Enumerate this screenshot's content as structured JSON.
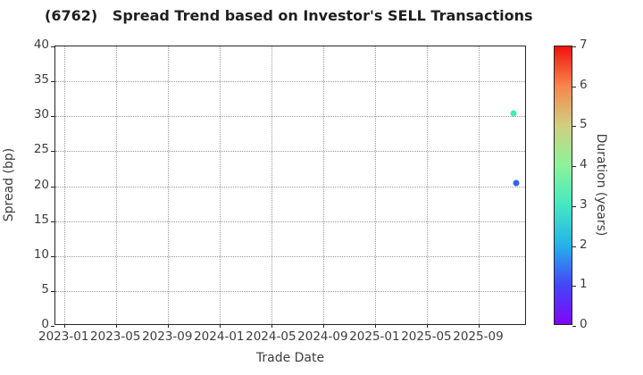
{
  "title": "(6762)   Spread Trend based on Investor's SELL Transactions",
  "chart_data": {
    "type": "scatter",
    "title": "(6762)   Spread Trend based on Investor's SELL Transactions",
    "xlabel": "Trade Date",
    "ylabel": "Spread (bp)",
    "x_axis": {
      "lim": [
        "2022-12-10",
        "2025-12-22"
      ],
      "ticks": [
        {
          "date": "2023-01-01",
          "label": "2023-01"
        },
        {
          "date": "2023-05-01",
          "label": "2023-05"
        },
        {
          "date": "2023-09-01",
          "label": "2023-09"
        },
        {
          "date": "2024-01-01",
          "label": "2024-01"
        },
        {
          "date": "2024-05-01",
          "label": "2024-05"
        },
        {
          "date": "2024-09-01",
          "label": "2024-09"
        },
        {
          "date": "2025-01-01",
          "label": "2025-01"
        },
        {
          "date": "2025-05-01",
          "label": "2025-05"
        },
        {
          "date": "2025-09-01",
          "label": "2025-09"
        }
      ]
    },
    "y_axis": {
      "lim": [
        0,
        40
      ],
      "ticks": [
        0,
        5,
        10,
        15,
        20,
        25,
        30,
        35,
        40
      ]
    },
    "grid": {
      "style": "dotted",
      "color": "#9a9a9a",
      "both_axes": true
    },
    "points": [
      {
        "date": "2025-11-20",
        "spread_bp": 30.4,
        "duration_years": 3.5,
        "color": "#45edb1"
      },
      {
        "date": "2025-11-28",
        "spread_bp": 20.5,
        "duration_years": 1.3,
        "color": "#2e66f0"
      }
    ],
    "colorbar": {
      "label": "Duration (years)",
      "min": 0,
      "max": 7,
      "ticks": [
        0,
        1,
        2,
        3,
        4,
        5,
        6,
        7
      ],
      "gradient": [
        {
          "value": 0,
          "color": "#7f06f8"
        },
        {
          "value": 1,
          "color": "#4447f7"
        },
        {
          "value": 2,
          "color": "#26b2e9"
        },
        {
          "value": 3,
          "color": "#45e8c2"
        },
        {
          "value": 4,
          "color": "#8df29a"
        },
        {
          "value": 5,
          "color": "#cfd07f"
        },
        {
          "value": 6,
          "color": "#f6864d"
        },
        {
          "value": 7,
          "color": "#f2120c"
        }
      ]
    }
  }
}
